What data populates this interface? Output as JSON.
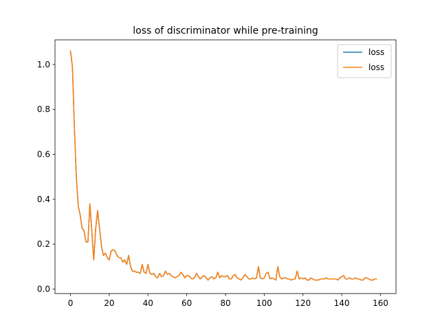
{
  "chart_data": {
    "type": "line",
    "title": "loss of discriminator while pre-training",
    "xlabel": "",
    "ylabel": "",
    "xlim": [
      -8,
      168
    ],
    "ylim": [
      -0.02,
      1.11
    ],
    "xticks": [
      0,
      20,
      40,
      60,
      80,
      100,
      120,
      140,
      160
    ],
    "yticks": [
      0.0,
      0.2,
      0.4,
      0.6,
      0.8,
      1.0
    ],
    "yticklabels": [
      "0.0",
      "0.2",
      "0.4",
      "0.6",
      "0.8",
      "1.0"
    ],
    "grid": false,
    "legend": "top-right",
    "series": [
      {
        "name": "loss",
        "color": "#1f77b4",
        "values": [
          1.06,
          0.99,
          0.72,
          0.5,
          0.37,
          0.33,
          0.27,
          0.26,
          0.21,
          0.21,
          0.38,
          0.26,
          0.13,
          0.27,
          0.35,
          0.27,
          0.19,
          0.15,
          0.16,
          0.14,
          0.13,
          0.17,
          0.175,
          0.17,
          0.15,
          0.14,
          0.14,
          0.12,
          0.13,
          0.11,
          0.15,
          0.1,
          0.08,
          0.08,
          0.075,
          0.075,
          0.07,
          0.11,
          0.075,
          0.07,
          0.11,
          0.07,
          0.065,
          0.07,
          0.055,
          0.05,
          0.07,
          0.055,
          0.06,
          0.08,
          0.065,
          0.07,
          0.06,
          0.055,
          0.05,
          0.055,
          0.06,
          0.075,
          0.065,
          0.05,
          0.06,
          0.06,
          0.05,
          0.045,
          0.05,
          0.07,
          0.055,
          0.045,
          0.055,
          0.06,
          0.05,
          0.04,
          0.05,
          0.055,
          0.045,
          0.05,
          0.075,
          0.05,
          0.06,
          0.055,
          0.055,
          0.06,
          0.045,
          0.045,
          0.06,
          0.065,
          0.05,
          0.045,
          0.04,
          0.05,
          0.065,
          0.055,
          0.045,
          0.045,
          0.05,
          0.045,
          0.05,
          0.1,
          0.05,
          0.045,
          0.05,
          0.07,
          0.075,
          0.045,
          0.05,
          0.045,
          0.04,
          0.1,
          0.055,
          0.045,
          0.05,
          0.05,
          0.045,
          0.045,
          0.04,
          0.045,
          0.045,
          0.08,
          0.045,
          0.05,
          0.045,
          0.05,
          0.04,
          0.04,
          0.05,
          0.045,
          0.04,
          0.04,
          0.04,
          0.045,
          0.045,
          0.045,
          0.05,
          0.045,
          0.045,
          0.045,
          0.045,
          0.045,
          0.04,
          0.05,
          0.055,
          0.06,
          0.045,
          0.045,
          0.05,
          0.045,
          0.045,
          0.05,
          0.045,
          0.045,
          0.04,
          0.04,
          0.05,
          0.05,
          0.045,
          0.04,
          0.04,
          0.045,
          0.045
        ]
      },
      {
        "name": "loss",
        "color": "#ff7f0e",
        "values": [
          1.06,
          0.99,
          0.72,
          0.5,
          0.37,
          0.33,
          0.27,
          0.26,
          0.21,
          0.21,
          0.38,
          0.26,
          0.13,
          0.27,
          0.35,
          0.27,
          0.19,
          0.15,
          0.16,
          0.14,
          0.13,
          0.17,
          0.175,
          0.17,
          0.15,
          0.14,
          0.14,
          0.12,
          0.13,
          0.11,
          0.15,
          0.1,
          0.08,
          0.08,
          0.075,
          0.075,
          0.07,
          0.11,
          0.075,
          0.07,
          0.11,
          0.07,
          0.065,
          0.07,
          0.055,
          0.05,
          0.07,
          0.055,
          0.06,
          0.08,
          0.065,
          0.07,
          0.06,
          0.055,
          0.05,
          0.055,
          0.06,
          0.075,
          0.065,
          0.05,
          0.06,
          0.06,
          0.05,
          0.045,
          0.05,
          0.07,
          0.055,
          0.045,
          0.055,
          0.06,
          0.05,
          0.04,
          0.05,
          0.055,
          0.045,
          0.05,
          0.075,
          0.05,
          0.06,
          0.055,
          0.055,
          0.06,
          0.045,
          0.045,
          0.06,
          0.065,
          0.05,
          0.045,
          0.04,
          0.05,
          0.065,
          0.055,
          0.045,
          0.045,
          0.05,
          0.045,
          0.05,
          0.1,
          0.05,
          0.045,
          0.05,
          0.07,
          0.075,
          0.045,
          0.05,
          0.045,
          0.04,
          0.1,
          0.055,
          0.045,
          0.05,
          0.05,
          0.045,
          0.045,
          0.04,
          0.045,
          0.045,
          0.08,
          0.045,
          0.05,
          0.045,
          0.05,
          0.04,
          0.04,
          0.05,
          0.045,
          0.04,
          0.04,
          0.04,
          0.045,
          0.045,
          0.045,
          0.05,
          0.045,
          0.045,
          0.045,
          0.045,
          0.045,
          0.04,
          0.05,
          0.055,
          0.06,
          0.045,
          0.045,
          0.05,
          0.045,
          0.045,
          0.05,
          0.045,
          0.045,
          0.04,
          0.04,
          0.05,
          0.05,
          0.045,
          0.04,
          0.04,
          0.045,
          0.045
        ]
      }
    ]
  }
}
